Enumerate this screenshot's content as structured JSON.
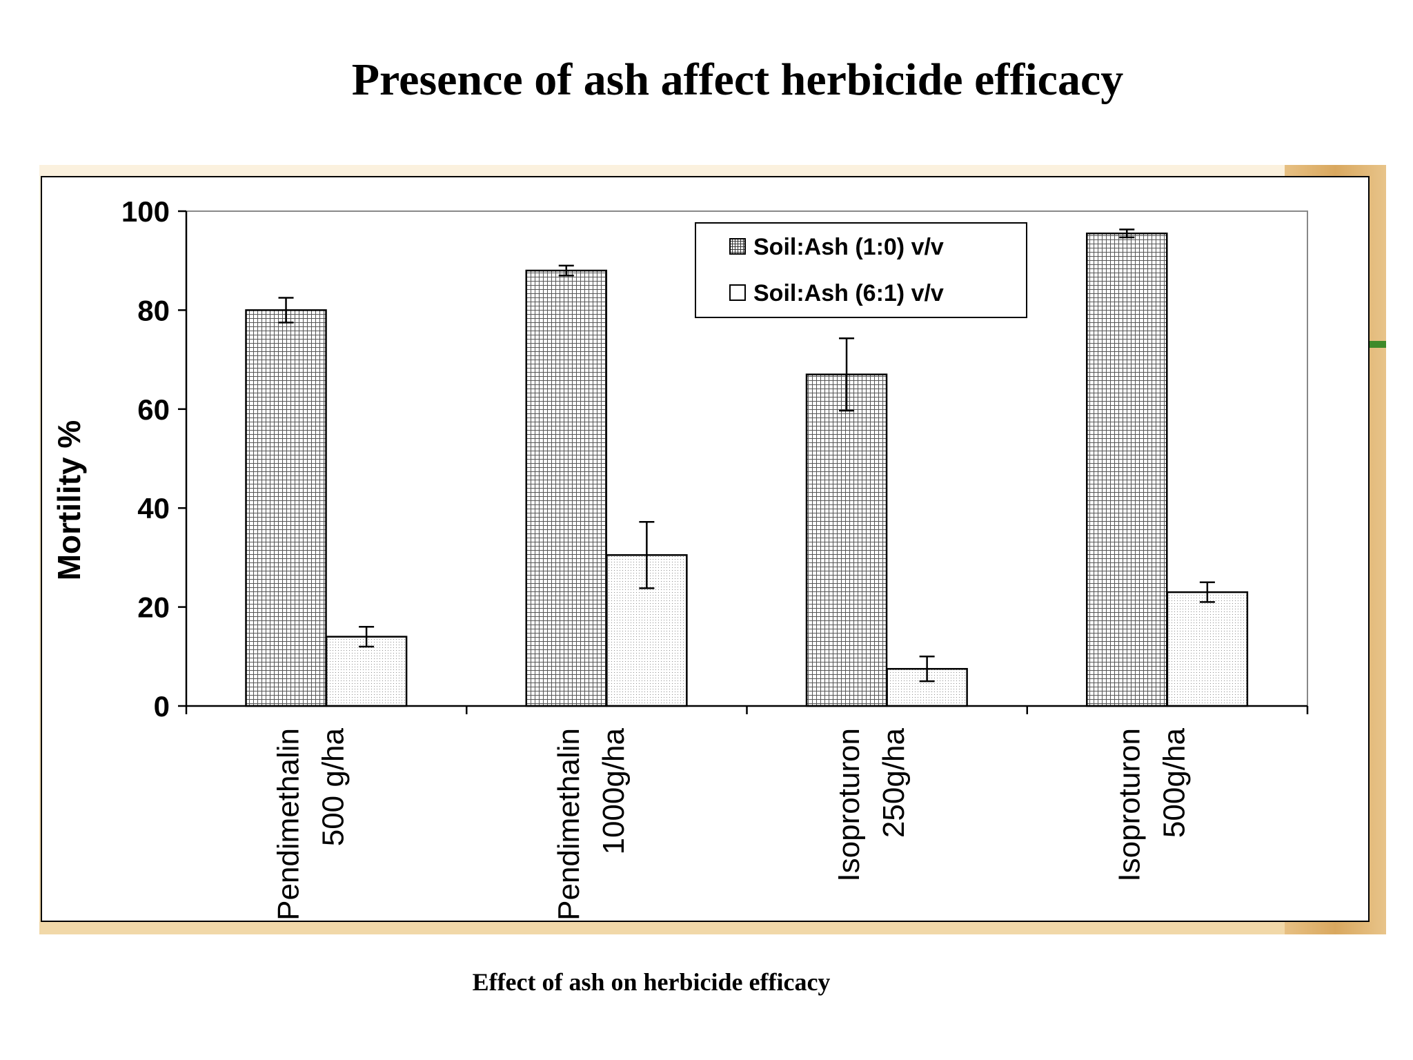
{
  "slide": {
    "title": "Presence of ash affect herbicide efficacy",
    "caption": "Effect of ash on herbicide efficacy"
  },
  "colors": {
    "frame_bg": "#ffffff",
    "deco_bg": "#f7e6c4",
    "deco_strip": "#d9a85f",
    "deco_line": "#3f8a2a",
    "series1_fill": "#c8c8c8",
    "series2_fill": "#eeeeee"
  },
  "chart_data": {
    "type": "bar",
    "title": "",
    "xlabel": "",
    "ylabel": "Mortility %",
    "ylim": [
      0,
      100
    ],
    "yticks": [
      "0",
      "20",
      "40",
      "60",
      "80",
      "100"
    ],
    "grid": false,
    "legend_position": "top-right",
    "categories": [
      [
        "Pendimethalin",
        "500 g/ha"
      ],
      [
        "Pendimethalin",
        "1000g/ha"
      ],
      [
        "Isoproturon",
        "250g/ha"
      ],
      [
        "Isoproturon",
        "500g/ha"
      ]
    ],
    "series": [
      {
        "name": "Soil:Ash (1:0) v/v",
        "pattern": "grid",
        "values": [
          80,
          88,
          67,
          95.5
        ],
        "errors": [
          2.5,
          1,
          7.3,
          0.8
        ]
      },
      {
        "name": "Soil:Ash (6:1) v/v",
        "pattern": "dots",
        "values": [
          14,
          30.5,
          7.5,
          23
        ],
        "errors": [
          2,
          6.7,
          2.5,
          2
        ]
      }
    ]
  }
}
